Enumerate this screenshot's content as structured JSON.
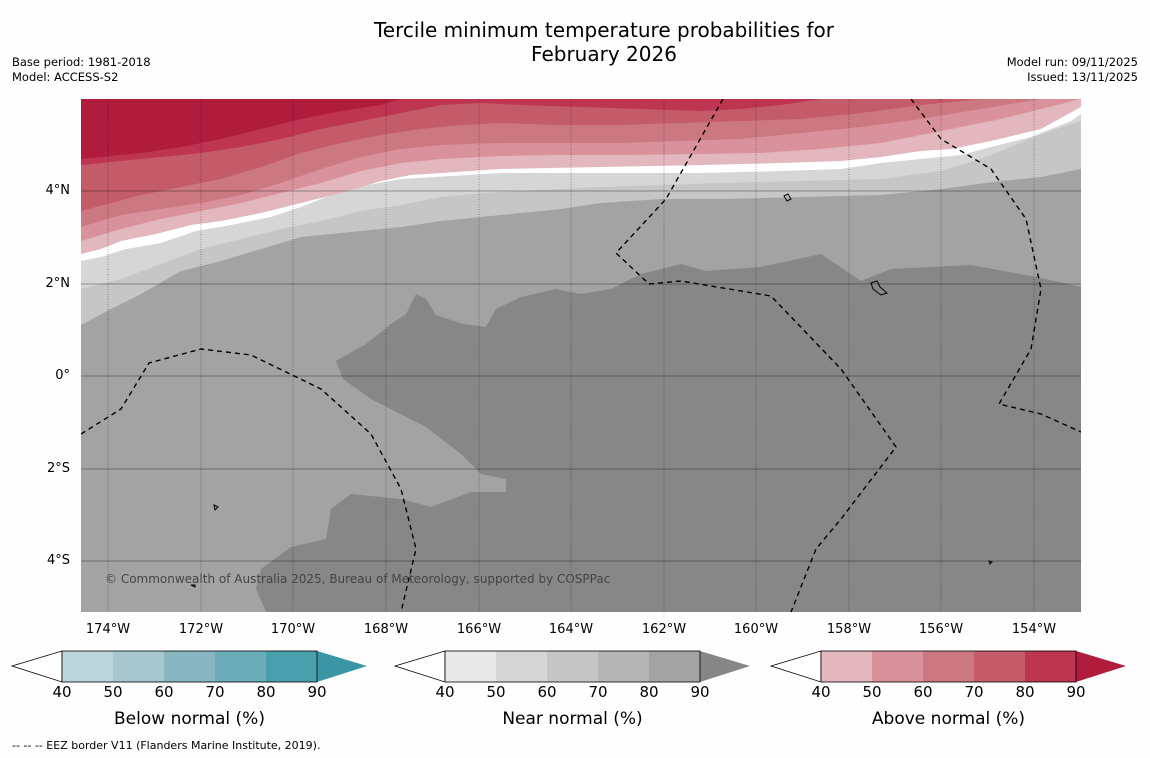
{
  "title": {
    "line1": "Tercile minimum temperature probabilities for",
    "line2": "February 2026"
  },
  "info_left": {
    "base_period": "Base period: 1981-2018",
    "model": "Model: ACCESS-S2"
  },
  "info_right": {
    "model_run": "Model run: 09/11/2025",
    "issued": "Issued: 13/11/2025"
  },
  "map": {
    "lat_labels": [
      "4°N",
      "2°N",
      "0°",
      "2°S",
      "4°S"
    ],
    "lon_labels": [
      "174°W",
      "172°W",
      "170°W",
      "168°W",
      "166°W",
      "164°W",
      "162°W",
      "160°W",
      "158°W",
      "156°W",
      "154°W"
    ],
    "copyright": "© Commonwealth of Australia 2025, Bureau of Meteorology, supported by COSPPac"
  },
  "colorbars": [
    {
      "label": "Below normal (%)",
      "ticks": [
        "40",
        "50",
        "60",
        "70",
        "80",
        "90"
      ],
      "colors": [
        "#ffffff",
        "#bdd5dc",
        "#a6c7cd",
        "#8ab6c2",
        "#6badb9",
        "#4a9fad",
        "#3a95a5"
      ]
    },
    {
      "label": "Near normal (%)",
      "ticks": [
        "40",
        "50",
        "60",
        "70",
        "80",
        "90"
      ],
      "colors": [
        "#ffffff",
        "#e8e8e8",
        "#d6d6d6",
        "#c6c6c6",
        "#b5b5b5",
        "#a3a3a3",
        "#868686"
      ]
    },
    {
      "label": "Above normal (%)",
      "ticks": [
        "40",
        "50",
        "60",
        "70",
        "80",
        "90"
      ],
      "colors": [
        "#ffffff",
        "#e2b8be",
        "#d9929b",
        "#cc7881",
        "#c45b68",
        "#bd3551",
        "#b01c3b"
      ]
    }
  ],
  "footer": {
    "text": "--  --  -- EEZ border V11 (Flanders Marine Institute, 2019)."
  }
}
